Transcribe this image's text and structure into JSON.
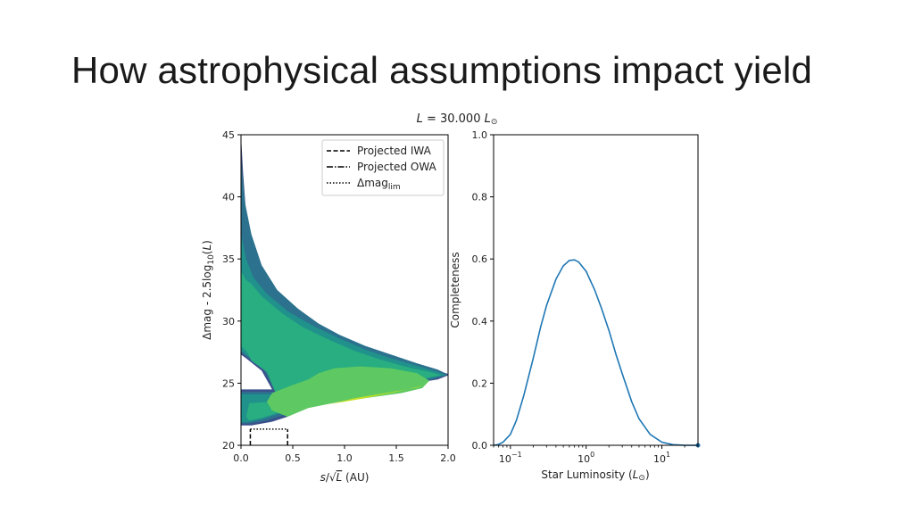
{
  "slide": {
    "title": "How astrophysical assumptions impact yield"
  },
  "figure": {
    "suptitle_var": "L",
    "suptitle_eq": " = 30.000 ",
    "suptitle_unit": "L",
    "suptitle_unit_sub": "⊙"
  },
  "colors": {
    "c1": "#3b518b",
    "c2": "#2c728e",
    "c3": "#21918c",
    "c4": "#28ae80",
    "c5": "#5ec962",
    "c6": "#c2df23",
    "line": "#1f77b4"
  },
  "chart_data": [
    {
      "type": "contour",
      "xlabel": "s/√L (AU)",
      "xlabel_parts": {
        "s": "s",
        "slash": "/",
        "sqrt": "√",
        "L": "L",
        "unit": " (AU)"
      },
      "ylabel": "Δmag - 2.5log10(L)",
      "ylabel_parts": {
        "main": "Δmag - 2.5log",
        "sub": "10",
        "paren_open": "(",
        "L": "L",
        "paren_close": ")"
      },
      "xlim": [
        0.0,
        2.0
      ],
      "ylim": [
        20,
        45
      ],
      "xticks": [
        "0.0",
        "0.5",
        "1.0",
        "1.5",
        "2.0"
      ],
      "yticks": [
        "20",
        "25",
        "30",
        "35",
        "40",
        "45"
      ],
      "legend": [
        {
          "label": "Projected IWA",
          "style": "dashed"
        },
        {
          "label": "Projected OWA",
          "style": "dashdot"
        },
        {
          "label": "Δmag",
          "sub": "lim",
          "style": "dotted"
        }
      ],
      "legend_position": "top-right",
      "iwa_x": 0.09,
      "owa_x": 0.45,
      "dmaglim_y": 21.3,
      "contour_levels": [
        {
          "level": 1,
          "color": "#3b518b"
        },
        {
          "level": 2,
          "color": "#2c728e"
        },
        {
          "level": 3,
          "color": "#21918c"
        },
        {
          "level": 4,
          "color": "#28ae80"
        },
        {
          "level": 5,
          "color": "#5ec962"
        },
        {
          "level": 6,
          "color": "#c2df23"
        }
      ]
    },
    {
      "type": "line",
      "xscale": "log",
      "xlabel": "Star Luminosity (L⊙)",
      "xlabel_parts": {
        "main": "Star Luminosity (",
        "L": "L",
        "sub": "⊙",
        "close": ")"
      },
      "ylabel": "Completeness",
      "xlim": [
        0.06,
        30
      ],
      "ylim": [
        0.0,
        1.0
      ],
      "xticks": [
        {
          "value": 0.1,
          "base": "10",
          "exp": "−1"
        },
        {
          "value": 1,
          "base": "10",
          "exp": "0"
        },
        {
          "value": 10,
          "base": "10",
          "exp": "1"
        }
      ],
      "yticks": [
        "0.0",
        "0.2",
        "0.4",
        "0.6",
        "0.8",
        "1.0"
      ],
      "series": [
        {
          "name": "completeness",
          "x": [
            0.06,
            0.07,
            0.08,
            0.1,
            0.12,
            0.15,
            0.2,
            0.25,
            0.3,
            0.4,
            0.5,
            0.6,
            0.7,
            0.8,
            1.0,
            1.3,
            1.6,
            2.0,
            2.5,
            3.0,
            4.0,
            5.0,
            7.0,
            10.0,
            14.0,
            20.0,
            30.0
          ],
          "values": [
            0.0,
            0.003,
            0.01,
            0.035,
            0.08,
            0.16,
            0.28,
            0.38,
            0.45,
            0.535,
            0.578,
            0.595,
            0.597,
            0.59,
            0.56,
            0.5,
            0.44,
            0.37,
            0.29,
            0.23,
            0.14,
            0.085,
            0.035,
            0.01,
            0.002,
            0.0,
            0.0
          ]
        }
      ]
    }
  ]
}
